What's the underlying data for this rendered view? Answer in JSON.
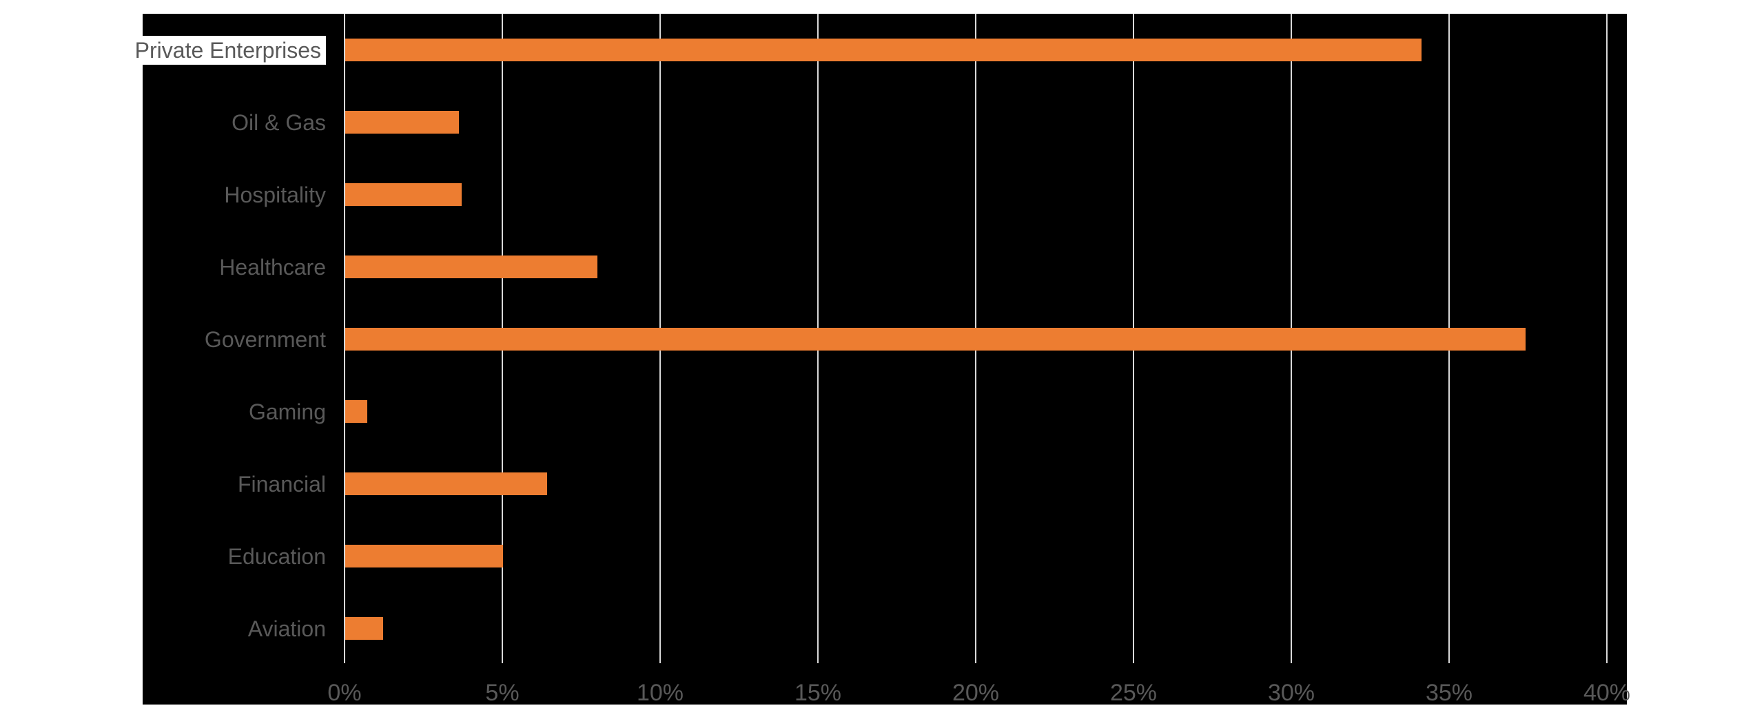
{
  "chart_data": {
    "type": "bar",
    "orientation": "horizontal",
    "title": "",
    "xlabel": "",
    "ylabel": "",
    "categories": [
      "Private Enterprises",
      "Oil & Gas",
      "Hospitality",
      "Healthcare",
      "Government",
      "Gaming",
      "Financial",
      "Education",
      "Aviation"
    ],
    "values": [
      34.1,
      3.6,
      3.7,
      8,
      37.4,
      0.7,
      6.4,
      5,
      1.2
    ],
    "unit": "%",
    "x_tick_labels": [
      "0%",
      "5%",
      "10%",
      "15%",
      "20%",
      "25%",
      "30%",
      "35%",
      "40%"
    ],
    "x_tick_values": [
      0,
      5,
      10,
      15,
      20,
      25,
      30,
      35,
      40
    ],
    "xlim": [
      0,
      40
    ],
    "grid": "vertical",
    "legend": "none",
    "highlighted_category": "Private Enterprises",
    "colors": {
      "bar": "#ED7D31",
      "chart_background": "#000000",
      "page_background": "#FFFFFF",
      "gridline": "#D9D9D9",
      "axis_text": "#595959",
      "highlight_background": "#FFFFFF",
      "highlight_text": "#595959"
    }
  }
}
